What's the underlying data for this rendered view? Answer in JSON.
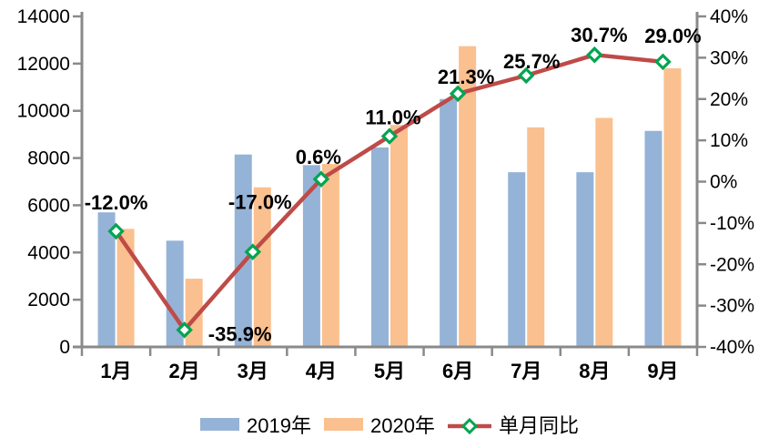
{
  "chart_data": {
    "type": "bar",
    "subtype": "grouped-bars-with-line-overlay",
    "title": "",
    "xlabel": "",
    "ylabel": "",
    "gridlines": false,
    "axis_color": "#8A8A8A",
    "text_color": "#000000",
    "categories": [
      "1月",
      "2月",
      "3月",
      "4月",
      "5月",
      "6月",
      "7月",
      "8月",
      "9月"
    ],
    "series": [
      {
        "name": "2019年",
        "type": "bar",
        "axis": "left",
        "color": "#95B3D7",
        "values": [
          5700,
          4500,
          8150,
          7700,
          8450,
          10500,
          7400,
          7400,
          9150
        ]
      },
      {
        "name": "2020年",
        "type": "bar",
        "axis": "left",
        "color": "#FAC08F",
        "values": [
          5000,
          2890,
          6760,
          7750,
          9400,
          12740,
          9300,
          9700,
          11800
        ]
      },
      {
        "name": "单月同比",
        "type": "line",
        "axis": "right",
        "color": "#BE4B48",
        "marker_shape": "diamond",
        "marker_stroke": "#00A550",
        "marker_fill": "#FFFFFF",
        "values": [
          -12.0,
          -35.9,
          -17.0,
          0.6,
          11.0,
          21.3,
          25.7,
          30.7,
          29.0
        ],
        "labels": [
          "-12.0%",
          "-35.9%",
          "-17.0%",
          "0.6%",
          "11.0%",
          "21.3%",
          "25.7%",
          "30.7%",
          "29.0%"
        ]
      }
    ],
    "left_axis": {
      "min": 0,
      "max": 14000,
      "step": 2000,
      "tick_labels": [
        "0",
        "2000",
        "4000",
        "6000",
        "8000",
        "10000",
        "12000",
        "14000"
      ]
    },
    "right_axis": {
      "min": -40,
      "max": 40,
      "step": 10,
      "tick_labels": [
        "-40%",
        "-30%",
        "-20%",
        "-10%",
        "0%",
        "10%",
        "20%",
        "30%",
        "40%"
      ]
    },
    "legend": {
      "position": "bottom-center",
      "items": [
        {
          "label": "2019年",
          "swatch": "bar",
          "color": "#95B3D7"
        },
        {
          "label": "2020年",
          "swatch": "bar",
          "color": "#FAC08F"
        },
        {
          "label": "单月同比",
          "swatch": "line-diamond",
          "line_color": "#BE4B48",
          "marker_stroke": "#00A550",
          "marker_fill": "#FFFFFF"
        }
      ]
    }
  }
}
